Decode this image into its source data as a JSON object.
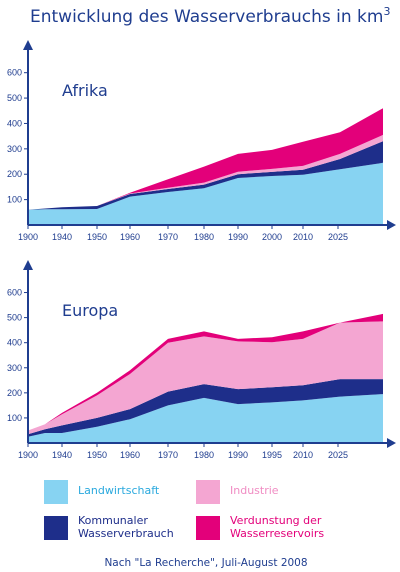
{
  "title": "Entwicklung des Wasserverbrauchs in km",
  "title_sup": "3",
  "source": "Nach \"La Recherche\", Juli-August 2008",
  "colors": {
    "landwirtschaft": "#87d3f2",
    "kommunal": "#1e2e8a",
    "industrie": "#f4a6d2",
    "verdunstung": "#e3007a",
    "axis": "#1f3d8f"
  },
  "legend": [
    {
      "key": "landwirtschaft",
      "label1": "Landwirtschaft",
      "label2": "",
      "text_color": "#2aa9de"
    },
    {
      "key": "industrie",
      "label1": "Industrie",
      "label2": "",
      "text_color": "#f08cc3"
    },
    {
      "key": "kommunal",
      "label1": "Kommunaler",
      "label2": "Wasserverbrauch",
      "text_color": "#1e2e8a"
    },
    {
      "key": "verdunstung",
      "label1": "Verdunstung der",
      "label2": "Wasserreservoirs",
      "text_color": "#e3007a"
    }
  ],
  "chart_data": [
    {
      "type": "area",
      "title": "Afrika",
      "stacked": true,
      "ylim": [
        0,
        650
      ],
      "yticks": [
        100,
        200,
        300,
        400,
        500,
        600
      ],
      "xticks": [
        "1900",
        "1940",
        "1950",
        "1960",
        "1970",
        "1980",
        "1990",
        "2000",
        "2010",
        "2025"
      ],
      "x": [
        1900,
        1920,
        1940,
        1950,
        1960,
        1970,
        1980,
        1990,
        2000,
        2010,
        2020,
        2030
      ],
      "series": [
        {
          "name": "Landwirtschaft",
          "key": "landwirtschaft",
          "values": [
            60,
            62,
            62,
            63,
            112,
            130,
            145,
            185,
            193,
            198,
            220,
            245
          ]
        },
        {
          "name": "Kommunaler Wasserverbrauch",
          "key": "kommunal",
          "values": [
            0,
            3,
            8,
            12,
            10,
            12,
            14,
            15,
            16,
            20,
            40,
            85
          ]
        },
        {
          "name": "Industrie",
          "key": "industrie",
          "values": [
            0,
            0,
            0,
            0,
            2,
            5,
            8,
            10,
            12,
            15,
            20,
            25
          ]
        },
        {
          "name": "Verdunstung der Wasserreservoirs",
          "key": "verdunstung",
          "values": [
            0,
            0,
            0,
            0,
            3,
            33,
            63,
            70,
            75,
            95,
            85,
            105
          ]
        }
      ]
    },
    {
      "type": "area",
      "title": "Europa",
      "stacked": true,
      "ylim": [
        0,
        650
      ],
      "yticks": [
        100,
        200,
        300,
        400,
        500,
        600
      ],
      "xticks": [
        "1900",
        "1940",
        "1950",
        "1960",
        "1970",
        "1980",
        "1990",
        "1995",
        "2010",
        "2025"
      ],
      "x": [
        1900,
        1920,
        1940,
        1950,
        1960,
        1970,
        1980,
        1990,
        2000,
        2010,
        2020,
        2030
      ],
      "series": [
        {
          "name": "Landwirtschaft",
          "key": "landwirtschaft",
          "values": [
            25,
            40,
            40,
            65,
            95,
            150,
            180,
            155,
            162,
            170,
            185,
            195
          ]
        },
        {
          "name": "Kommunaler Wasserverbrauch",
          "key": "kommunal",
          "values": [
            10,
            15,
            30,
            35,
            40,
            55,
            55,
            60,
            60,
            60,
            70,
            60
          ]
        },
        {
          "name": "Industrie",
          "key": "industrie",
          "values": [
            15,
            20,
            45,
            90,
            140,
            195,
            190,
            190,
            180,
            185,
            225,
            230
          ]
        },
        {
          "name": "Verdunstung der Wasserreservoirs",
          "key": "verdunstung",
          "values": [
            0,
            0,
            5,
            10,
            15,
            15,
            20,
            10,
            20,
            30,
            0,
            30
          ]
        }
      ]
    }
  ]
}
